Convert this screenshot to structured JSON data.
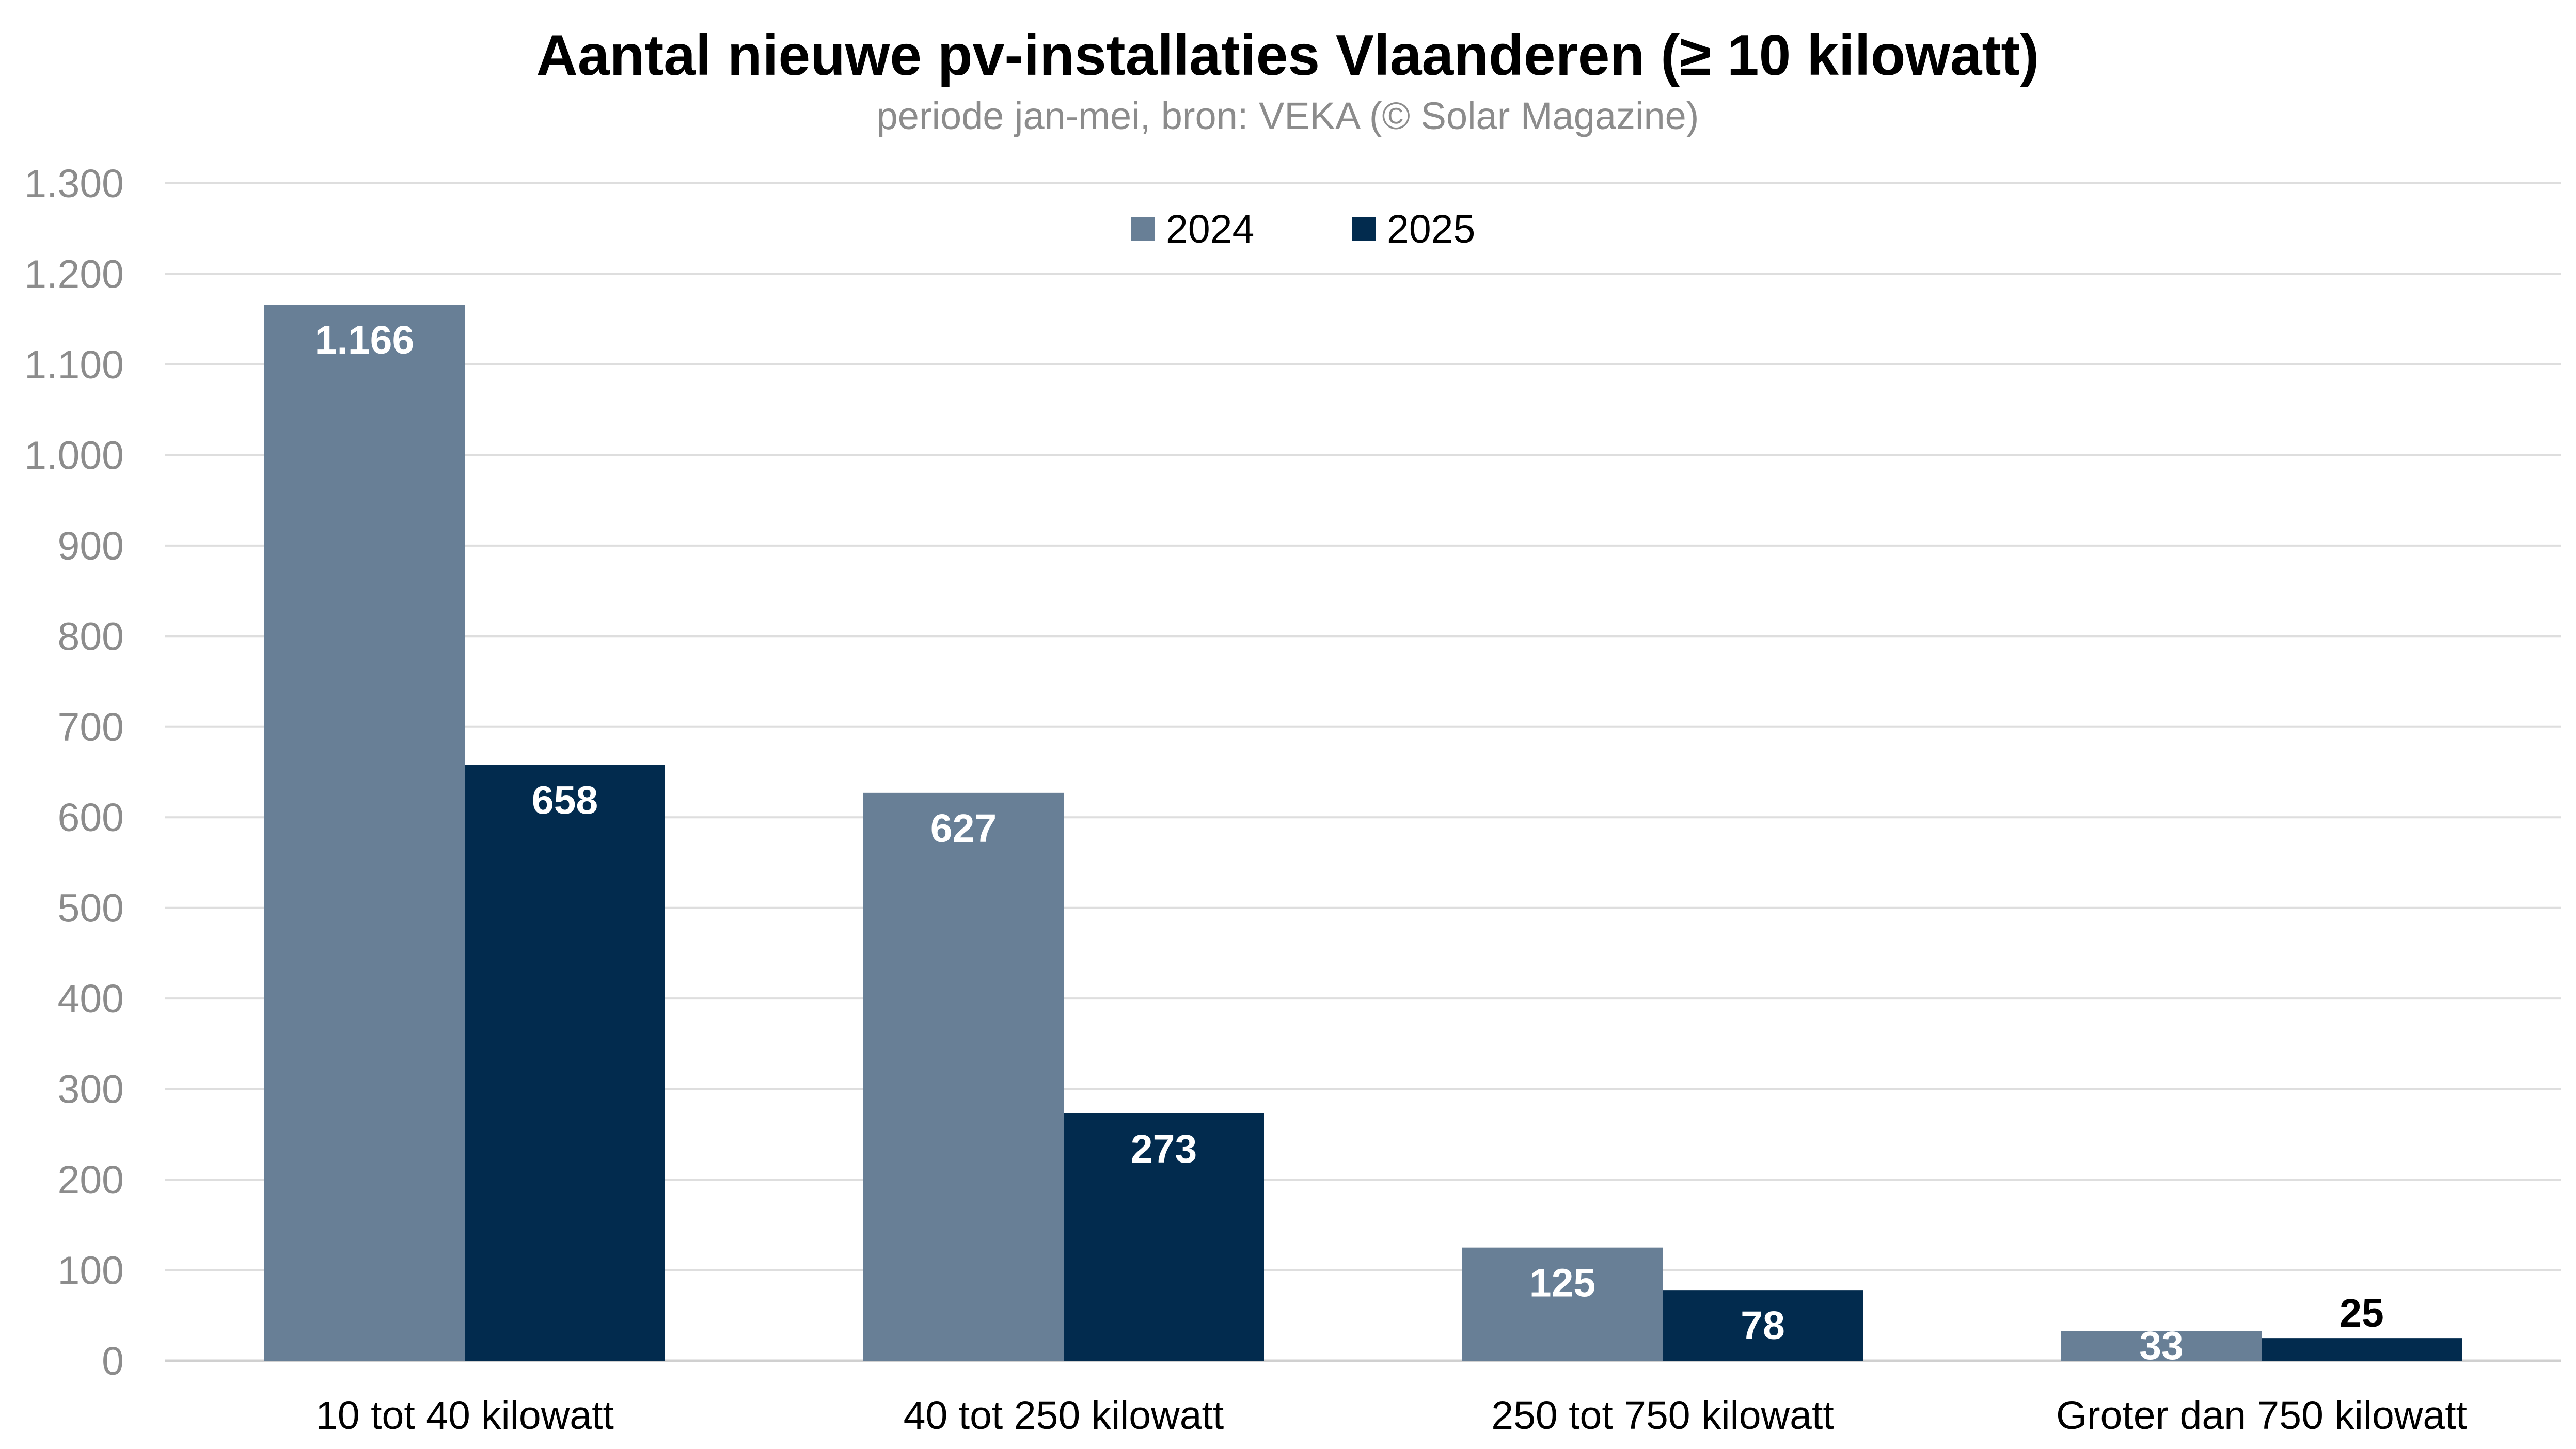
{
  "chart_data": {
    "type": "bar",
    "title": "Aantal nieuwe pv-installaties Vlaanderen (≥ 10 kilowatt)",
    "subtitle": "periode jan-mei, bron: VEKA (© Solar Magazine)",
    "categories": [
      "10 tot 40 kilowatt",
      "40 tot 250 kilowatt",
      "250 tot 750 kilowatt",
      "Groter dan 750 kilowatt"
    ],
    "series": [
      {
        "name": "2024",
        "color": "#687f96",
        "values": [
          1166,
          627,
          125,
          33
        ],
        "labels": [
          "1.166",
          "627",
          "125",
          "33"
        ]
      },
      {
        "name": "2025",
        "color": "#022b4e",
        "values": [
          658,
          273,
          78,
          25
        ],
        "labels": [
          "658",
          "273",
          "78",
          "25"
        ]
      }
    ],
    "ylim": [
      0,
      1300
    ],
    "yticks": [
      0,
      100,
      200,
      300,
      400,
      500,
      600,
      700,
      800,
      900,
      1000,
      1100,
      1200,
      1300
    ],
    "ytick_labels": [
      "0",
      "100",
      "200",
      "300",
      "400",
      "500",
      "600",
      "700",
      "800",
      "900",
      "1.000",
      "1.100",
      "1.200",
      "1.300"
    ],
    "grid": true,
    "legend_position": "top-center",
    "xlabel": "",
    "ylabel": ""
  }
}
